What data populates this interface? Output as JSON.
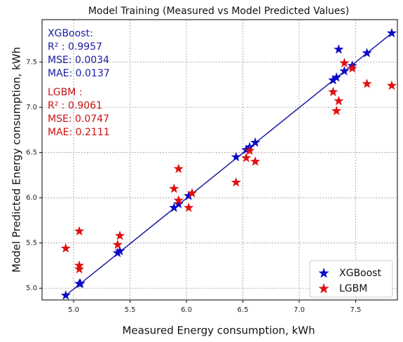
{
  "chart_data": {
    "type": "scatter",
    "title": "Model Training (Measured vs Model Predicted Values)",
    "x_label": "Measured Energy consumption, kWh",
    "y_label": "Model Predicted Energy consumption, kWh",
    "xlim": [
      4.72,
      7.87
    ],
    "ylim": [
      4.87,
      7.97
    ],
    "xticks": [
      {
        "value": 5,
        "label": "5.0"
      },
      5.5,
      {
        "value": 6,
        "label": "6.0"
      },
      6.5,
      {
        "value": 7,
        "label": "7.0"
      },
      7.5
    ],
    "yticks": [
      {
        "value": 5,
        "label": "5.0"
      },
      5.5,
      {
        "value": 6,
        "label": "6.0"
      },
      6.5,
      {
        "value": 7,
        "label": "7.0"
      },
      7.5
    ],
    "grid": true,
    "legend": "lower right",
    "fit_line": {
      "x": [
        4.93,
        7.82
      ],
      "y": [
        4.92,
        7.82
      ],
      "color": "#1a1aa6"
    },
    "annotations": [
      {
        "color": "#1a1aa6",
        "lines": [
          "XGBoost:",
          "R² : 0.9957",
          "MSE: 0.0034",
          "MAE: 0.0137"
        ]
      },
      {
        "color": "#cc1111",
        "lines": [
          "LGBM :",
          "R² : 0.9061",
          "MSE: 0.0747",
          "MAE: 0.2111"
        ]
      }
    ],
    "series": [
      {
        "name": "XGBoost",
        "color": "#0a0ac8",
        "x": [
          4.93,
          5.05,
          5.06,
          5.39,
          5.41,
          5.89,
          5.93,
          6.02,
          6.44,
          6.53,
          6.56,
          6.61,
          7.3,
          7.33,
          7.35,
          7.4,
          7.47,
          7.6,
          7.82
        ],
        "values": [
          4.92,
          5.05,
          5.05,
          5.39,
          5.41,
          5.89,
          5.93,
          6.02,
          6.45,
          6.53,
          6.56,
          6.61,
          7.3,
          7.33,
          7.64,
          7.4,
          7.46,
          7.6,
          7.82
        ]
      },
      {
        "name": "LGBM",
        "color": "#e01010",
        "x": [
          4.93,
          5.05,
          5.05,
          5.05,
          5.39,
          5.41,
          5.89,
          5.93,
          5.93,
          6.02,
          6.05,
          6.44,
          6.53,
          6.56,
          6.61,
          7.3,
          7.33,
          7.35,
          7.4,
          7.47,
          7.6,
          7.82
        ],
        "values": [
          5.44,
          5.63,
          5.25,
          5.21,
          5.48,
          5.58,
          6.1,
          6.32,
          5.97,
          5.89,
          6.05,
          6.17,
          6.44,
          6.52,
          6.4,
          7.17,
          6.96,
          7.07,
          7.49,
          7.43,
          7.26,
          7.24
        ]
      }
    ]
  }
}
